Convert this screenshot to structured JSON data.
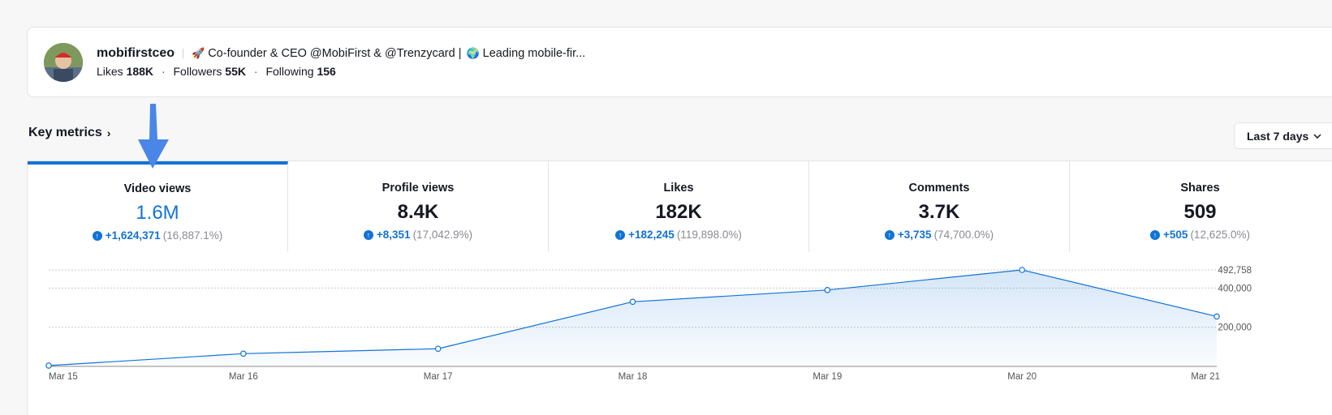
{
  "profile": {
    "username": "mobifirstceo",
    "bio_emoji_1": "🚀",
    "bio_part_1": "Co-founder & CEO @MobiFirst & @Trenzycard |",
    "bio_emoji_2": "🌍",
    "bio_part_2": "Leading mobile-fir...",
    "likes_label": "Likes",
    "likes_value": "188K",
    "followers_label": "Followers",
    "followers_value": "55K",
    "following_label": "Following",
    "following_value": "156",
    "dot": "·"
  },
  "key_metrics": {
    "title": "Key metrics",
    "chevron": "›",
    "range_label": "Last 7 days",
    "range_chevron": "⌄"
  },
  "tabs": [
    {
      "label": "Video views",
      "value": "1.6M",
      "delta": "+1,624,371",
      "pct": "(16,887.1%)"
    },
    {
      "label": "Profile views",
      "value": "8.4K",
      "delta": "+8,351",
      "pct": "(17,042.9%)"
    },
    {
      "label": "Likes",
      "value": "182K",
      "delta": "+182,245",
      "pct": "(119,898.0%)"
    },
    {
      "label": "Comments",
      "value": "3.7K",
      "delta": "+3,735",
      "pct": "(74,700.0%)"
    },
    {
      "label": "Shares",
      "value": "509",
      "delta": "+505",
      "pct": "(12,625.0%)"
    }
  ],
  "colors": {
    "accent": "#1273d6",
    "annotation_arrow": "#4a86e8"
  },
  "icons": {
    "up": "arrow-up-circle-icon"
  },
  "chart_data": {
    "type": "area",
    "x": [
      "Mar 15",
      "Mar 16",
      "Mar 17",
      "Mar 18",
      "Mar 19",
      "Mar 20",
      "Mar 21"
    ],
    "values": [
      4000,
      65000,
      90000,
      330000,
      390000,
      492758,
      255000
    ],
    "y_ticks": [
      {
        "value": 200000,
        "label": "200,000"
      },
      {
        "value": 400000,
        "label": "400,000"
      },
      {
        "value": 492758,
        "label": "492,758"
      }
    ],
    "ylim": [
      0,
      492758
    ],
    "grid": true
  }
}
